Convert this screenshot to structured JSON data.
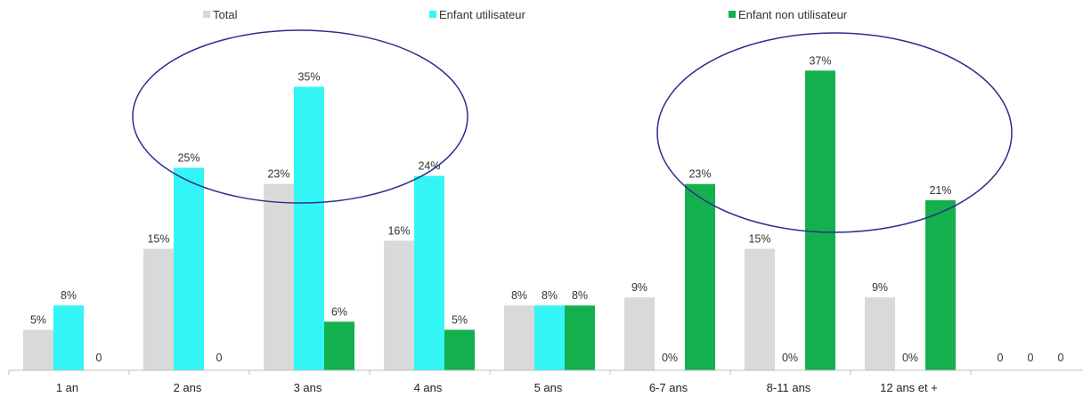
{
  "chart_data": {
    "type": "bar",
    "title": "",
    "xlabel": "",
    "ylabel": "",
    "ylim": [
      0,
      40
    ],
    "grid": false,
    "legend_position": "top",
    "categories": [
      "1 an",
      "2 ans",
      "3 ans",
      "4 ans",
      "5 ans",
      "6-7 ans",
      "8-11 ans",
      "12 ans et +",
      ""
    ],
    "series": [
      {
        "name": "Total",
        "color": "#d9d9d9",
        "values": [
          5,
          15,
          23,
          16,
          8,
          9,
          15,
          9,
          0
        ],
        "labels": [
          "5%",
          "15%",
          "23%",
          "16%",
          "8%",
          "9%",
          "15%",
          "9%",
          "0"
        ]
      },
      {
        "name": "Enfant utilisateur",
        "color": "#33f5f5",
        "values": [
          8,
          25,
          35,
          24,
          8,
          0,
          0,
          0,
          0
        ],
        "labels": [
          "8%",
          "25%",
          "35%",
          "24%",
          "8%",
          "0%",
          "0%",
          "0%",
          "0"
        ]
      },
      {
        "name": "Enfant non utilisateur",
        "color": "#14b04e",
        "values": [
          0,
          0,
          6,
          5,
          8,
          23,
          37,
          21,
          0
        ],
        "labels": [
          "0",
          "0",
          "6%",
          "5%",
          "8%",
          "23%",
          "37%",
          "21%",
          "0"
        ]
      }
    ],
    "annotations": [
      {
        "type": "ellipse",
        "color": "#2e2e8c",
        "around_categories": [
          "2 ans",
          "3 ans",
          "4 ans"
        ]
      },
      {
        "type": "ellipse",
        "color": "#2e2e8c",
        "around_categories": [
          "6-7 ans",
          "8-11 ans",
          "12 ans et +"
        ]
      }
    ]
  }
}
